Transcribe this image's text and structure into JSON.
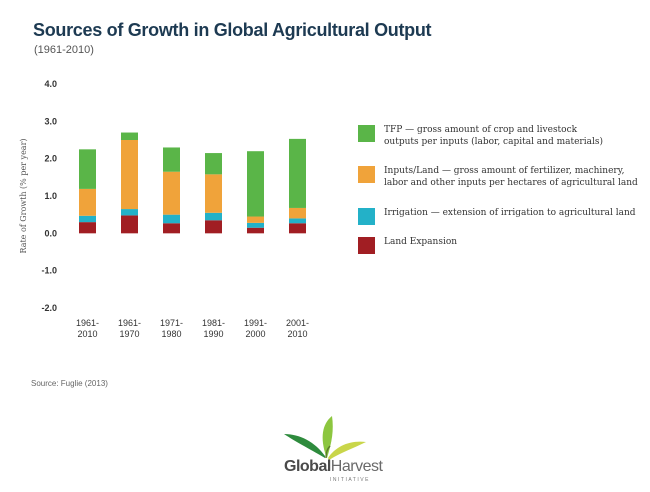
{
  "header": {
    "title": "Sources of Growth in Global Agricultural Output",
    "subtitle": "(1961-2010)"
  },
  "source": "Source: Fuglie (2013)",
  "logo": {
    "name_part1": "Global",
    "name_part2": "Harvest",
    "tagline": "INITIATIVE"
  },
  "colors": {
    "tfp": "#5ab548",
    "inputs": "#f0a33a",
    "irrigation": "#23b1c8",
    "land": "#a11e23"
  },
  "chart_data": {
    "type": "bar",
    "stacked": true,
    "ylabel": "Rate of Growth (% per year)",
    "ylim": [
      -2.0,
      4.0
    ],
    "yticks": [
      "4.0",
      "3.0",
      "2.0",
      "1.0",
      "0.0",
      "-1.0",
      "-2.0"
    ],
    "ytick_values": [
      4,
      3,
      2,
      1,
      0,
      -1,
      -2
    ],
    "categories": [
      [
        "1961-",
        "2010"
      ],
      [
        "1961-",
        "1970"
      ],
      [
        "1971-",
        "1980"
      ],
      [
        "1981-",
        "1990"
      ],
      [
        "1991-",
        "2000"
      ],
      [
        "2001-",
        "2010"
      ]
    ],
    "legend_position": "right",
    "series": [
      {
        "key": "land",
        "name": "Land Expansion",
        "values": [
          0.3,
          0.48,
          0.27,
          0.35,
          0.15,
          0.27
        ]
      },
      {
        "key": "irrigation",
        "name": "Irrigation — extension of irrigation to agricultural land",
        "values": [
          0.17,
          0.17,
          0.23,
          0.2,
          0.13,
          0.13
        ]
      },
      {
        "key": "inputs",
        "name": "Inputs/Land — gross amount of fertilizer, machinery, labor and other inputs per hectares of agricultural land",
        "values": [
          0.72,
          1.85,
          1.15,
          1.03,
          0.17,
          0.28
        ]
      },
      {
        "key": "tfp",
        "name": "TFP — gross amount of crop and livestock outputs per inputs (labor, capital and materials)",
        "values": [
          1.06,
          0.2,
          0.65,
          0.57,
          1.75,
          1.85
        ]
      }
    ],
    "legend": [
      {
        "key": "tfp",
        "lines": [
          "TFP — gross amount of crop and livestock",
          "outputs per inputs (labor, capital and materials)"
        ]
      },
      {
        "key": "inputs",
        "lines": [
          "Inputs/Land — gross amount of fertilizer, machinery,",
          "labor and other inputs per hectares of agricultural land"
        ]
      },
      {
        "key": "irrigation",
        "lines": [
          "Irrigation — extension of irrigation to agricultural land"
        ]
      },
      {
        "key": "land",
        "lines": [
          "Land Expansion"
        ]
      }
    ]
  }
}
